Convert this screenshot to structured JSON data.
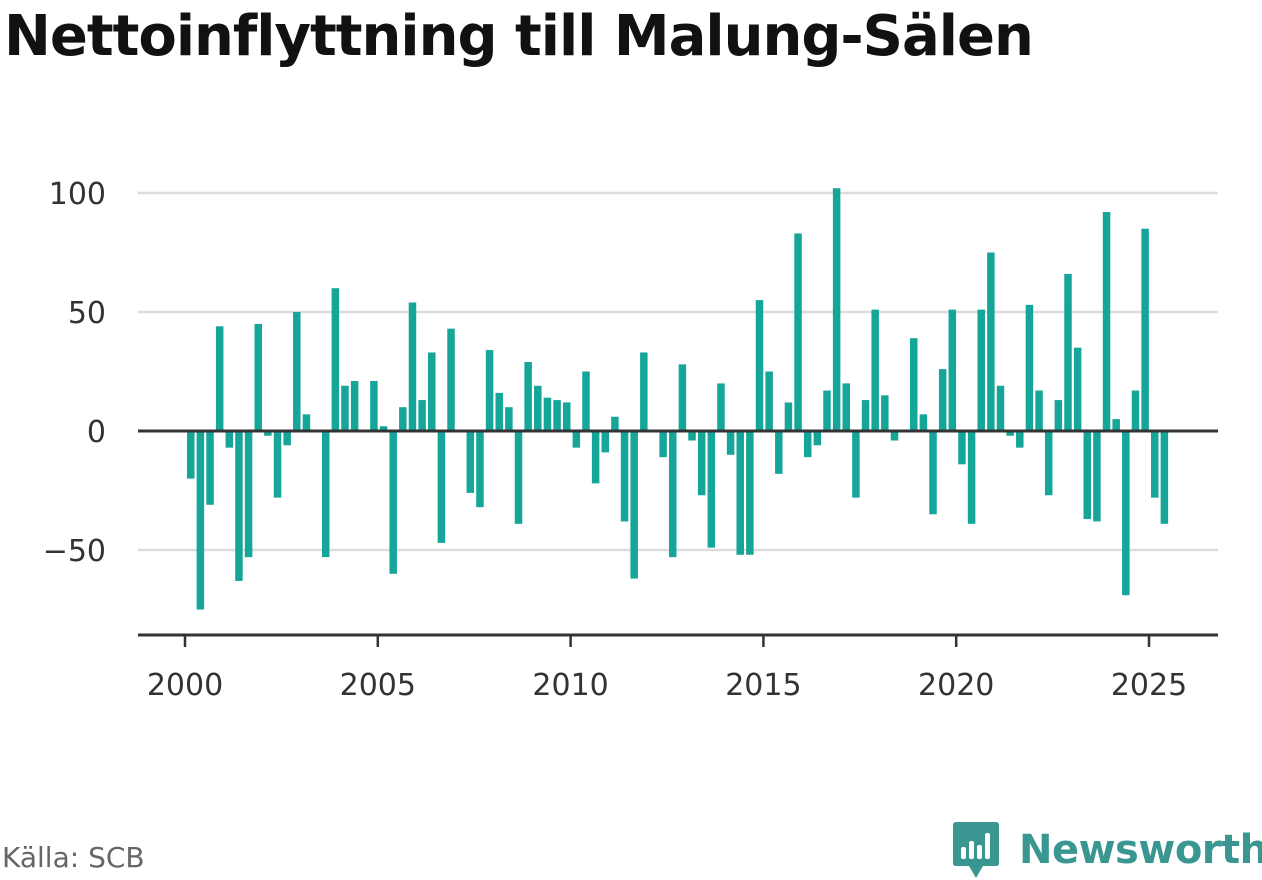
{
  "title": "Nettoinflyttning till Malung-Sälen",
  "source": "Källa: SCB",
  "brand": {
    "name": "Newsworthy",
    "icon": "newsworthy-logo-icon",
    "color": "#3a9690"
  },
  "colors": {
    "bar": "#16a699",
    "grid": "#dcdcdc",
    "axis": "#333333"
  },
  "chart_data": {
    "type": "bar",
    "title": "Nettoinflyttning till Malung-Sälen",
    "xlabel": "",
    "ylabel": "",
    "x_ticks": [
      2000,
      2005,
      2010,
      2015,
      2020,
      2025
    ],
    "y_ticks": [
      -50,
      0,
      50,
      100
    ],
    "y_tick_labels": [
      "−50",
      "0",
      "50",
      "100"
    ],
    "xlim": [
      1998.75,
      2026.8
    ],
    "ylim": [
      -86,
      102
    ],
    "grid": true,
    "frequency": "quarterly",
    "x": [
      2000.0,
      2000.25,
      2000.5,
      2000.75,
      2001.0,
      2001.25,
      2001.5,
      2001.75,
      2002.0,
      2002.25,
      2002.5,
      2002.75,
      2003.0,
      2003.25,
      2003.5,
      2003.75,
      2004.0,
      2004.25,
      2004.5,
      2004.75,
      2005.0,
      2005.25,
      2005.5,
      2005.75,
      2006.0,
      2006.25,
      2006.5,
      2006.75,
      2007.0,
      2007.25,
      2007.5,
      2007.75,
      2008.0,
      2008.25,
      2008.5,
      2008.75,
      2009.0,
      2009.25,
      2009.5,
      2009.75,
      2010.0,
      2010.25,
      2010.5,
      2010.75,
      2011.0,
      2011.25,
      2011.5,
      2011.75,
      2012.0,
      2012.25,
      2012.5,
      2012.75,
      2013.0,
      2013.25,
      2013.5,
      2013.75,
      2014.0,
      2014.25,
      2014.5,
      2014.75,
      2015.0,
      2015.25,
      2015.5,
      2015.75,
      2016.0,
      2016.25,
      2016.5,
      2016.75,
      2017.0,
      2017.25,
      2017.5,
      2017.75,
      2018.0,
      2018.25,
      2018.5,
      2018.75,
      2019.0,
      2019.25,
      2019.5,
      2019.75,
      2020.0,
      2020.25,
      2020.5,
      2020.75,
      2021.0,
      2021.25,
      2021.5,
      2021.75,
      2022.0,
      2022.25,
      2022.5,
      2022.75,
      2023.0,
      2023.25,
      2023.5,
      2023.75,
      2024.0,
      2024.25,
      2024.5,
      2024.75,
      2025.0,
      2025.25
    ],
    "values": [
      -20,
      -75,
      -31,
      44,
      -7,
      -63,
      -53,
      45,
      -2,
      -28,
      -6,
      50,
      7,
      0,
      -53,
      60,
      19,
      21,
      0,
      21,
      2,
      -60,
      10,
      54,
      13,
      33,
      -47,
      43,
      0,
      -26,
      -32,
      34,
      16,
      10,
      -39,
      29,
      19,
      14,
      13,
      12,
      -7,
      25,
      -22,
      -9,
      6,
      -38,
      -62,
      33,
      0,
      -11,
      -53,
      28,
      -4,
      -27,
      -49,
      20,
      -10,
      -52,
      -52,
      55,
      25,
      -18,
      12,
      83,
      -11,
      -6,
      17,
      102,
      20,
      -28,
      13,
      51,
      15,
      -4,
      0,
      39,
      7,
      -35,
      26,
      51,
      -14,
      -39,
      51,
      75,
      19,
      -2,
      -7,
      53,
      17,
      -27,
      13,
      66,
      35,
      -37,
      -38,
      92,
      5,
      -69,
      17,
      85,
      -28,
      -39
    ]
  }
}
